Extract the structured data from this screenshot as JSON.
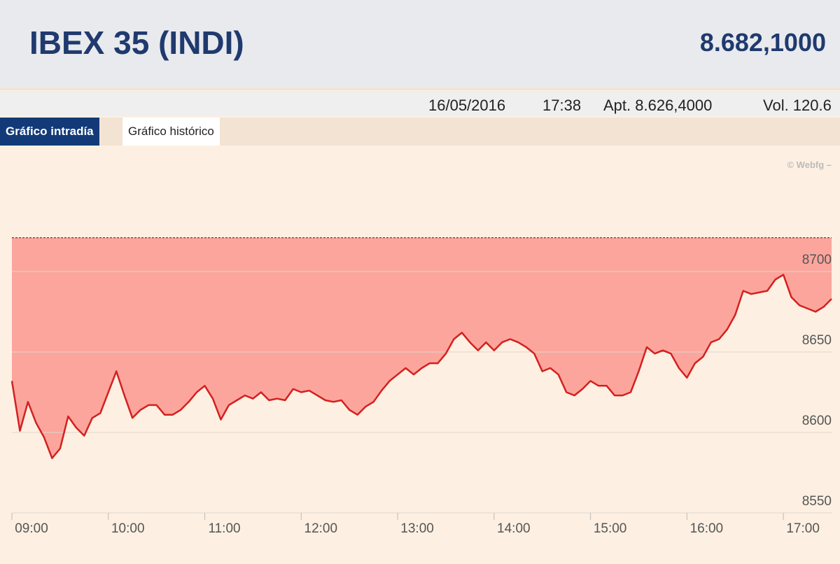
{
  "header": {
    "title": "IBEX 35 (INDI)",
    "price": "8.682,1000"
  },
  "info": {
    "date": "16/05/2016",
    "time": "17:38",
    "open": "Apt. 8.626,4000",
    "volume": "Vol. 120.6"
  },
  "tabs": [
    "Gráfico intradía",
    "Gráfico histórico"
  ],
  "watermark": "© Webfg –",
  "chart_data": {
    "type": "area-line",
    "color": "#d42020",
    "fill": "#fca59c",
    "reference_line": 8721,
    "grid": true,
    "x": [
      "09:00",
      "09:05",
      "09:10",
      "09:15",
      "09:20",
      "09:25",
      "09:30",
      "09:35",
      "09:40",
      "09:45",
      "09:50",
      "09:55",
      "10:00",
      "10:05",
      "10:10",
      "10:15",
      "10:20",
      "10:25",
      "10:30",
      "10:35",
      "10:40",
      "10:45",
      "10:50",
      "10:55",
      "11:00",
      "11:05",
      "11:10",
      "11:15",
      "11:20",
      "11:25",
      "11:30",
      "11:35",
      "11:40",
      "11:45",
      "11:50",
      "11:55",
      "12:00",
      "12:05",
      "12:10",
      "12:15",
      "12:20",
      "12:25",
      "12:30",
      "12:35",
      "12:40",
      "12:45",
      "12:50",
      "12:55",
      "13:00",
      "13:05",
      "13:10",
      "13:15",
      "13:20",
      "13:25",
      "13:30",
      "13:35",
      "13:40",
      "13:45",
      "13:50",
      "13:55",
      "14:00",
      "14:05",
      "14:10",
      "14:15",
      "14:20",
      "14:25",
      "14:30",
      "14:35",
      "14:40",
      "14:45",
      "14:50",
      "14:55",
      "15:00",
      "15:05",
      "15:10",
      "15:15",
      "15:20",
      "15:25",
      "15:30",
      "15:35",
      "15:40",
      "15:45",
      "15:50",
      "15:55",
      "16:00",
      "16:05",
      "16:10",
      "16:15",
      "16:20",
      "16:25",
      "16:30",
      "16:35",
      "16:40",
      "16:45",
      "16:50",
      "16:55",
      "17:00",
      "17:05",
      "17:10",
      "17:15",
      "17:20",
      "17:25",
      "17:30"
    ],
    "values": [
      8632,
      8601,
      8619,
      8606,
      8597,
      8584,
      8590,
      8610,
      8603,
      8598,
      8609,
      8612,
      8625,
      8638,
      8623,
      8609,
      8614,
      8617,
      8617,
      8611,
      8611,
      8614,
      8619,
      8625,
      8629,
      8621,
      8608,
      8617,
      8620,
      8623,
      8621,
      8625,
      8620,
      8621,
      8620,
      8627,
      8625,
      8626,
      8623,
      8620,
      8619,
      8620,
      8614,
      8611,
      8616,
      8619,
      8626,
      8632,
      8636,
      8640,
      8636,
      8640,
      8643,
      8643,
      8649,
      8658,
      8662,
      8656,
      8651,
      8656,
      8651,
      8656,
      8658,
      8656,
      8653,
      8649,
      8638,
      8640,
      8636,
      8625,
      8623,
      8627,
      8632,
      8629,
      8629,
      8623,
      8623,
      8625,
      8638,
      8653,
      8649,
      8651,
      8649,
      8640,
      8634,
      8643,
      8647,
      8656,
      8658,
      8664,
      8673,
      8688,
      8686,
      8687,
      8688,
      8695,
      8698,
      8684,
      8679,
      8677,
      8675,
      8678,
      8683
    ],
    "xlim": [
      "09:00",
      "17:30"
    ],
    "xticks": [
      "09:00",
      "10:00",
      "11:00",
      "12:00",
      "13:00",
      "14:00",
      "15:00",
      "16:00",
      "17:00"
    ],
    "ylim": [
      8550,
      8775
    ],
    "yticks": [
      8550,
      8600,
      8650,
      8700
    ]
  }
}
